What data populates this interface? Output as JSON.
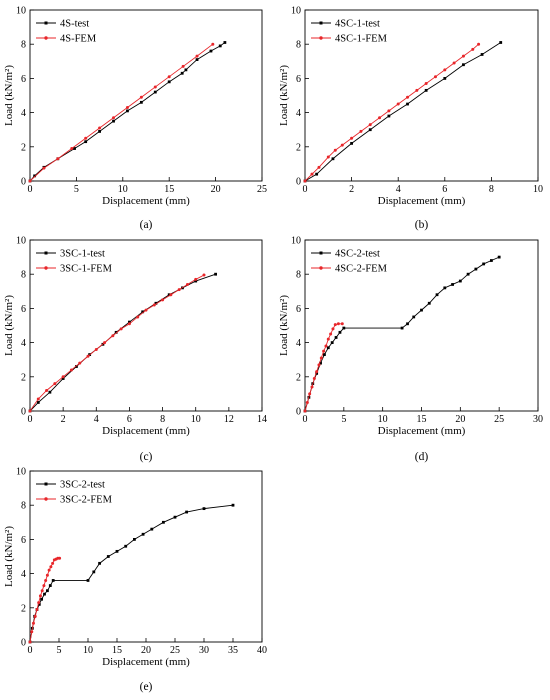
{
  "colors": {
    "test": "#000000",
    "fem": "#e8262a"
  },
  "chart_data": [
    {
      "panel_label": "(a)",
      "type": "line",
      "xlabel": "Displacement (mm)",
      "ylabel": "Load (kN/m²)",
      "xlim": [
        0,
        25
      ],
      "ylim": [
        0,
        10
      ],
      "xticks": [
        0,
        5,
        10,
        15,
        20,
        25
      ],
      "yticks": [
        0,
        2,
        4,
        6,
        8,
        10
      ],
      "legend": "top-left",
      "series": [
        {
          "name": "4S-test",
          "color": "#000000",
          "marker": "square",
          "x": [
            0,
            0.5,
            1.5,
            3.0,
            4.8,
            6.0,
            7.5,
            9.0,
            10.5,
            12.0,
            13.5,
            15.0,
            16.4,
            16.8,
            18.0,
            19.5,
            20.5,
            21.0
          ],
          "y": [
            0,
            0.3,
            0.8,
            1.3,
            1.9,
            2.3,
            2.9,
            3.5,
            4.1,
            4.6,
            5.2,
            5.8,
            6.3,
            6.5,
            7.1,
            7.6,
            7.9,
            8.1
          ]
        },
        {
          "name": "4S-FEM",
          "color": "#e8262a",
          "marker": "circle",
          "x": [
            0,
            1.5,
            3.0,
            4.5,
            6.0,
            7.5,
            9.0,
            10.5,
            12.0,
            13.5,
            15.0,
            16.5,
            18.0,
            19.7
          ],
          "y": [
            0,
            0.75,
            1.3,
            1.9,
            2.5,
            3.1,
            3.7,
            4.3,
            4.9,
            5.5,
            6.1,
            6.7,
            7.3,
            8.0
          ]
        }
      ]
    },
    {
      "panel_label": "(b)",
      "type": "line",
      "xlabel": "Displacement (mm)",
      "ylabel": "Load (kN/m²)",
      "xlim": [
        0,
        10
      ],
      "ylim": [
        0,
        10
      ],
      "xticks": [
        0,
        2,
        4,
        6,
        8,
        10
      ],
      "yticks": [
        0,
        2,
        4,
        6,
        8,
        10
      ],
      "legend": "top-left",
      "series": [
        {
          "name": "4SC-1-test",
          "color": "#000000",
          "marker": "square",
          "x": [
            0,
            0.5,
            1.2,
            2.0,
            2.8,
            3.6,
            4.4,
            5.2,
            6.0,
            6.8,
            7.6,
            8.4
          ],
          "y": [
            0,
            0.4,
            1.3,
            2.2,
            3.0,
            3.8,
            4.5,
            5.3,
            6.0,
            6.8,
            7.4,
            8.1
          ]
        },
        {
          "name": "4SC-1-FEM",
          "color": "#e8262a",
          "marker": "circle",
          "x": [
            0,
            0.3,
            0.6,
            1.0,
            1.3,
            1.6,
            2.0,
            2.4,
            2.8,
            3.2,
            3.6,
            4.0,
            4.4,
            4.8,
            5.2,
            5.6,
            6.0,
            6.4,
            6.8,
            7.2,
            7.45
          ],
          "y": [
            0,
            0.4,
            0.8,
            1.4,
            1.8,
            2.1,
            2.5,
            2.9,
            3.3,
            3.7,
            4.1,
            4.5,
            4.9,
            5.3,
            5.7,
            6.1,
            6.5,
            6.9,
            7.3,
            7.7,
            8.0
          ]
        }
      ]
    },
    {
      "panel_label": "(c)",
      "type": "line",
      "xlabel": "Displacement (mm)",
      "ylabel": "Load (kN/m²)",
      "xlim": [
        0,
        14
      ],
      "ylim": [
        0,
        10
      ],
      "xticks": [
        0,
        2,
        4,
        6,
        8,
        10,
        12,
        14
      ],
      "yticks": [
        0,
        2,
        4,
        6,
        8,
        10
      ],
      "legend": "top-left",
      "series": [
        {
          "name": "3SC-1-test",
          "color": "#000000",
          "marker": "square",
          "x": [
            0,
            0.5,
            1.2,
            2.0,
            2.8,
            3.6,
            4.4,
            5.2,
            6.0,
            6.8,
            7.6,
            8.4,
            9.2,
            10.0,
            11.2
          ],
          "y": [
            0,
            0.5,
            1.1,
            1.9,
            2.6,
            3.3,
            3.9,
            4.6,
            5.2,
            5.8,
            6.3,
            6.8,
            7.2,
            7.6,
            8.0
          ]
        },
        {
          "name": "3SC-1-FEM",
          "color": "#e8262a",
          "marker": "circle",
          "x": [
            0,
            0.5,
            1.0,
            1.5,
            2.0,
            2.5,
            3.0,
            3.5,
            4.0,
            4.5,
            5.0,
            5.5,
            6.0,
            6.5,
            7.0,
            7.5,
            8.0,
            8.5,
            9.0,
            9.5,
            10.0,
            10.5
          ],
          "y": [
            0,
            0.7,
            1.2,
            1.6,
            2.0,
            2.4,
            2.8,
            3.2,
            3.6,
            4.0,
            4.4,
            4.8,
            5.1,
            5.5,
            5.9,
            6.2,
            6.5,
            6.8,
            7.1,
            7.4,
            7.7,
            7.95
          ]
        }
      ]
    },
    {
      "panel_label": "(d)",
      "type": "line",
      "xlabel": "Displacement (mm)",
      "ylabel": "Load (kN/m²)",
      "xlim": [
        0,
        30
      ],
      "ylim": [
        0,
        10
      ],
      "xticks": [
        0,
        5,
        10,
        15,
        20,
        25,
        30
      ],
      "yticks": [
        0,
        2,
        4,
        6,
        8,
        10
      ],
      "legend": "top-left",
      "series": [
        {
          "name": "4SC-2-test",
          "color": "#000000",
          "marker": "square",
          "x": [
            0,
            0.5,
            1.0,
            1.5,
            2.0,
            2.5,
            3.0,
            3.5,
            4.0,
            4.5,
            5.0,
            12.5,
            13.2,
            14.0,
            15.0,
            16.0,
            17.0,
            18.0,
            19.0,
            20.0,
            21.0,
            22.0,
            23.0,
            24.0,
            25.0
          ],
          "y": [
            0,
            0.8,
            1.6,
            2.2,
            2.8,
            3.3,
            3.7,
            4.0,
            4.3,
            4.6,
            4.85,
            4.85,
            5.1,
            5.5,
            5.9,
            6.3,
            6.8,
            7.2,
            7.4,
            7.6,
            8.0,
            8.3,
            8.6,
            8.8,
            9.0
          ]
        },
        {
          "name": "4SC-2-FEM",
          "color": "#e8262a",
          "marker": "circle",
          "x": [
            0,
            0.3,
            0.6,
            0.9,
            1.2,
            1.5,
            1.8,
            2.1,
            2.4,
            2.7,
            3.0,
            3.3,
            3.6,
            3.9,
            4.3,
            4.8
          ],
          "y": [
            0,
            0.5,
            1.0,
            1.4,
            1.9,
            2.3,
            2.7,
            3.1,
            3.5,
            3.8,
            4.2,
            4.5,
            4.8,
            5.05,
            5.1,
            5.1
          ]
        }
      ]
    },
    {
      "panel_label": "(e)",
      "type": "line",
      "xlabel": "Displacement (mm)",
      "ylabel": "Load (kN/m²)",
      "xlim": [
        0,
        40
      ],
      "ylim": [
        0,
        10
      ],
      "xticks": [
        0,
        5,
        10,
        15,
        20,
        25,
        30,
        35,
        40
      ],
      "yticks": [
        0,
        2,
        4,
        6,
        8,
        10
      ],
      "legend": "top-left",
      "series": [
        {
          "name": "3SC-2-test",
          "color": "#000000",
          "marker": "square",
          "x": [
            0,
            0.4,
            0.8,
            1.2,
            1.6,
            2.0,
            2.5,
            3.0,
            3.5,
            4.0,
            10.0,
            11.0,
            12.0,
            13.5,
            15.0,
            16.5,
            18.0,
            19.5,
            21.0,
            23.0,
            25.0,
            27.0,
            30.0,
            35.0
          ],
          "y": [
            0,
            0.8,
            1.5,
            1.9,
            2.2,
            2.5,
            2.8,
            3.0,
            3.3,
            3.6,
            3.6,
            4.1,
            4.6,
            5.0,
            5.3,
            5.6,
            6.0,
            6.3,
            6.6,
            7.0,
            7.3,
            7.6,
            7.8,
            8.0
          ]
        },
        {
          "name": "3SC-2-FEM",
          "color": "#e8262a",
          "marker": "circle",
          "x": [
            0,
            0.3,
            0.6,
            0.9,
            1.2,
            1.5,
            1.8,
            2.1,
            2.4,
            2.7,
            3.0,
            3.3,
            3.6,
            3.9,
            4.2,
            4.5,
            4.8,
            5.1
          ],
          "y": [
            0,
            0.6,
            1.1,
            1.5,
            1.9,
            2.3,
            2.7,
            3.0,
            3.3,
            3.6,
            3.9,
            4.2,
            4.4,
            4.6,
            4.8,
            4.85,
            4.9,
            4.9
          ]
        }
      ]
    }
  ]
}
